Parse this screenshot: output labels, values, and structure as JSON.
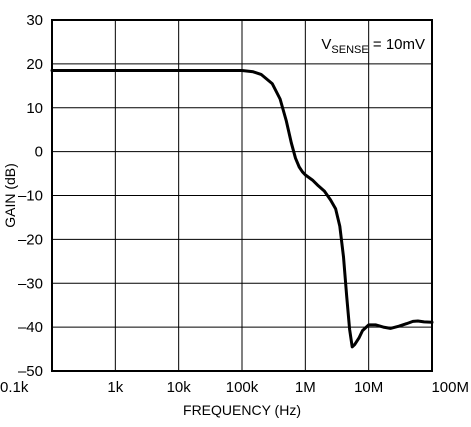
{
  "chart_data": {
    "type": "line",
    "x_scale": "log",
    "xlabel": "FREQUENCY (Hz)",
    "ylabel": "GAIN (dB)",
    "xlim": [
      100,
      100000000
    ],
    "ylim": [
      -50,
      30
    ],
    "grid": true,
    "x_ticks": [
      {
        "value": 100,
        "label": "0.1k"
      },
      {
        "value": 1000,
        "label": "1k"
      },
      {
        "value": 10000,
        "label": "10k"
      },
      {
        "value": 100000,
        "label": "100k"
      },
      {
        "value": 1000000,
        "label": "1M"
      },
      {
        "value": 10000000,
        "label": "10M"
      },
      {
        "value": 100000000,
        "label": "100M"
      }
    ],
    "y_ticks": [
      {
        "value": 30,
        "label": "30"
      },
      {
        "value": 20,
        "label": "20"
      },
      {
        "value": 10,
        "label": "10"
      },
      {
        "value": 0,
        "label": "0"
      },
      {
        "value": -10,
        "label": "–10"
      },
      {
        "value": -20,
        "label": "–20"
      },
      {
        "value": -30,
        "label": "–30"
      },
      {
        "value": -40,
        "label": "–40"
      },
      {
        "value": -50,
        "label": "–50"
      }
    ],
    "annotation": {
      "main": "V",
      "subscript": "SENSE",
      "suffix": " = 10mV",
      "position": "top-right"
    },
    "series": [
      {
        "x": [
          100,
          1000,
          10000,
          100000,
          150000,
          200000,
          300000,
          400000,
          500000,
          600000,
          700000,
          800000,
          900000,
          1000000,
          1300000,
          1600000,
          2000000,
          2500000,
          3000000,
          3500000,
          4000000,
          4500000,
          5000000,
          5500000,
          6000000,
          7000000,
          8000000,
          10000000,
          13000000,
          17000000,
          22000000,
          30000000,
          40000000,
          50000000,
          60000000,
          75000000,
          100000000
        ],
        "y": [
          18.5,
          18.5,
          18.5,
          18.5,
          18.2,
          17.6,
          15.5,
          12.0,
          7.0,
          2.0,
          -1.5,
          -3.5,
          -4.6,
          -5.3,
          -6.5,
          -7.8,
          -9.0,
          -11.0,
          -13.0,
          -17.0,
          -24.0,
          -33.0,
          -40.5,
          -44.5,
          -44.0,
          -42.5,
          -40.8,
          -39.5,
          -39.5,
          -40.0,
          -40.3,
          -39.8,
          -39.2,
          -38.7,
          -38.6,
          -38.8,
          -38.9
        ],
        "color": "#000000"
      }
    ]
  }
}
